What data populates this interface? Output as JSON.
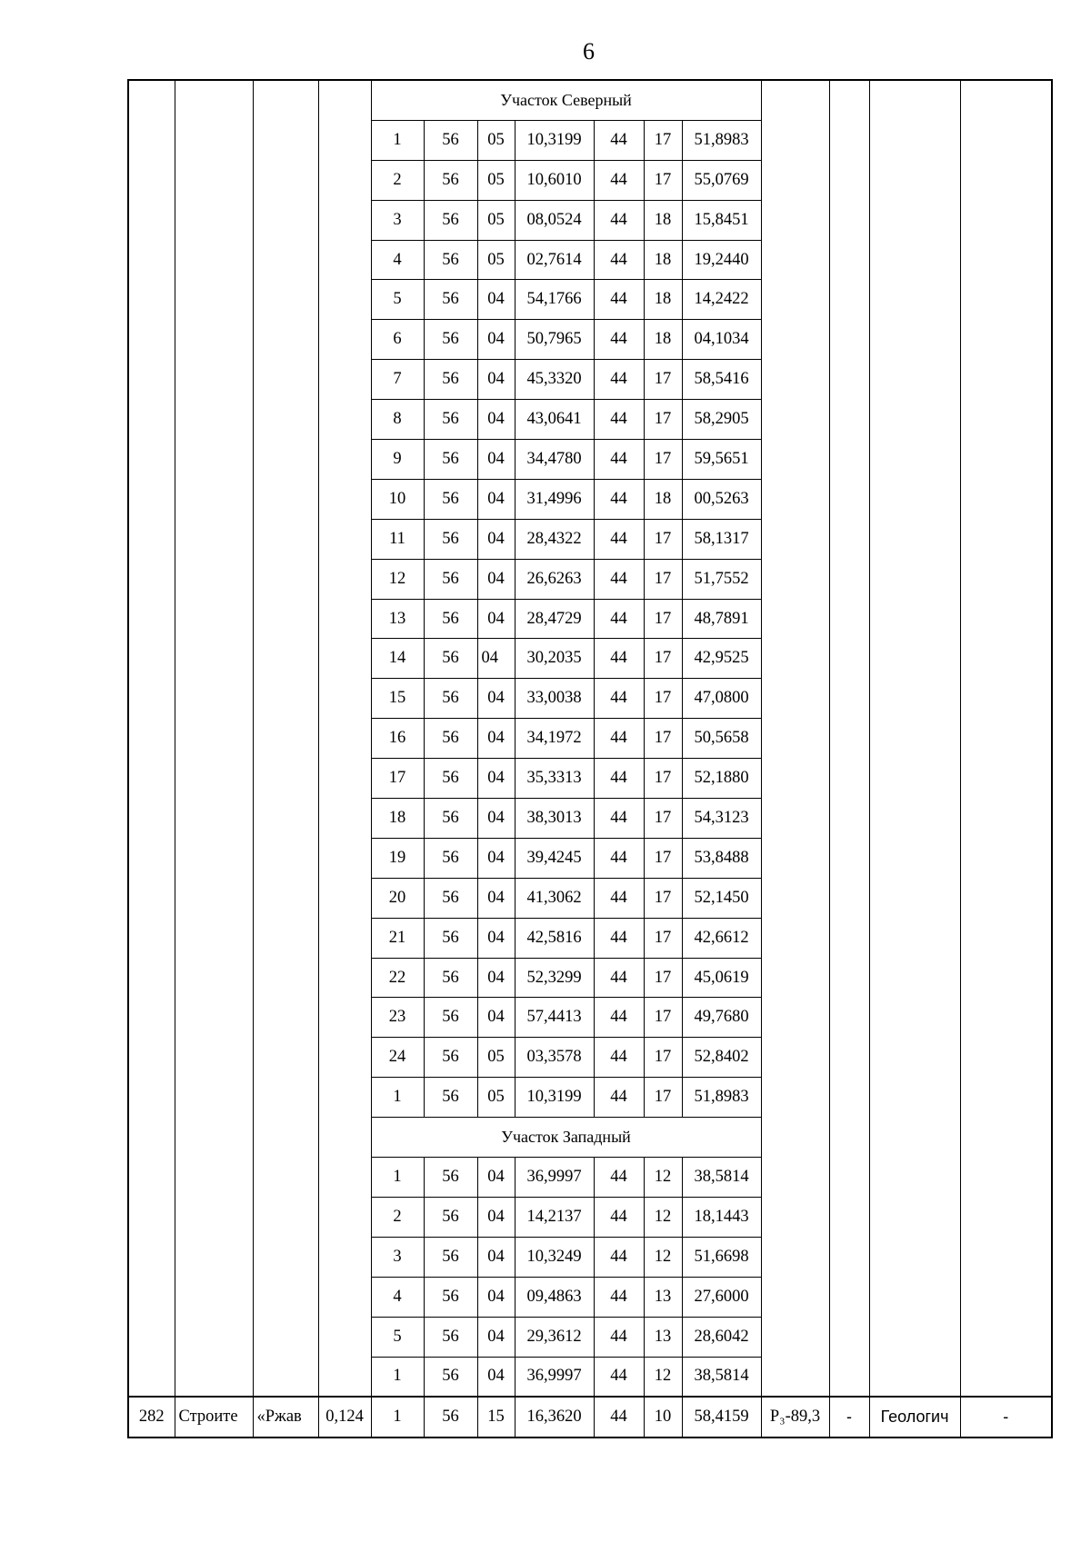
{
  "page_number": "6",
  "sections": [
    {
      "title": "Участок Северный",
      "rows": [
        [
          "1",
          "56",
          "05",
          "10,3199",
          "44",
          "17",
          "51,8983"
        ],
        [
          "2",
          "56",
          "05",
          "10,6010",
          "44",
          "17",
          "55,0769"
        ],
        [
          "3",
          "56",
          "05",
          "08,0524",
          "44",
          "18",
          "15,8451"
        ],
        [
          "4",
          "56",
          "05",
          "02,7614",
          "44",
          "18",
          "19,2440"
        ],
        [
          "5",
          "56",
          "04",
          "54,1766",
          "44",
          "18",
          "14,2422"
        ],
        [
          "6",
          "56",
          "04",
          "50,7965",
          "44",
          "18",
          "04,1034"
        ],
        [
          "7",
          "56",
          "04",
          "45,3320",
          "44",
          "17",
          "58,5416"
        ],
        [
          "8",
          "56",
          "04",
          "43,0641",
          "44",
          "17",
          "58,2905"
        ],
        [
          "9",
          "56",
          "04",
          "34,4780",
          "44",
          "17",
          "59,5651"
        ],
        [
          "10",
          "56",
          "04",
          "31,4996",
          "44",
          "18",
          "00,5263"
        ],
        [
          "11",
          "56",
          "04",
          "28,4322",
          "44",
          "17",
          "58,1317"
        ],
        [
          "12",
          "56",
          "04",
          "26,6263",
          "44",
          "17",
          "51,7552"
        ],
        [
          "13",
          "56",
          "04",
          "28,4729",
          "44",
          "17",
          "48,7891"
        ],
        [
          "14",
          "56",
          "04",
          "30,2035",
          "44",
          "17",
          "42,9525"
        ],
        [
          "15",
          "56",
          "04",
          "33,0038",
          "44",
          "17",
          "47,0800"
        ],
        [
          "16",
          "56",
          "04",
          "34,1972",
          "44",
          "17",
          "50,5658"
        ],
        [
          "17",
          "56",
          "04",
          "35,3313",
          "44",
          "17",
          "52,1880"
        ],
        [
          "18",
          "56",
          "04",
          "38,3013",
          "44",
          "17",
          "54,3123"
        ],
        [
          "19",
          "56",
          "04",
          "39,4245",
          "44",
          "17",
          "53,8488"
        ],
        [
          "20",
          "56",
          "04",
          "41,3062",
          "44",
          "17",
          "52,1450"
        ],
        [
          "21",
          "56",
          "04",
          "42,5816",
          "44",
          "17",
          "42,6612"
        ],
        [
          "22",
          "56",
          "04",
          "52,3299",
          "44",
          "17",
          "45,0619"
        ],
        [
          "23",
          "56",
          "04",
          "57,4413",
          "44",
          "17",
          "49,7680"
        ],
        [
          "24",
          "56",
          "05",
          "03,3578",
          "44",
          "17",
          "52,8402"
        ],
        [
          "1",
          "56",
          "05",
          "10,3199",
          "44",
          "17",
          "51,8983"
        ]
      ]
    },
    {
      "title": "Участок Западный",
      "rows": [
        [
          "1",
          "56",
          "04",
          "36,9997",
          "44",
          "12",
          "38,5814"
        ],
        [
          "2",
          "56",
          "04",
          "14,2137",
          "44",
          "12",
          "18,1443"
        ],
        [
          "3",
          "56",
          "04",
          "10,3249",
          "44",
          "12",
          "51,6698"
        ],
        [
          "4",
          "56",
          "04",
          "09,4863",
          "44",
          "13",
          "27,6000"
        ],
        [
          "5",
          "56",
          "04",
          "29,3612",
          "44",
          "13",
          "28,6042"
        ],
        [
          "1",
          "56",
          "04",
          "36,9997",
          "44",
          "12",
          "38,5814"
        ]
      ]
    }
  ],
  "last_row": [
    "282",
    "Строите",
    "«Ржав",
    "0,124",
    "1",
    "56",
    "15",
    "16,3620",
    "44",
    "10",
    "58,4159",
    "P₃-89,3",
    "-",
    "Геологич",
    "-"
  ]
}
